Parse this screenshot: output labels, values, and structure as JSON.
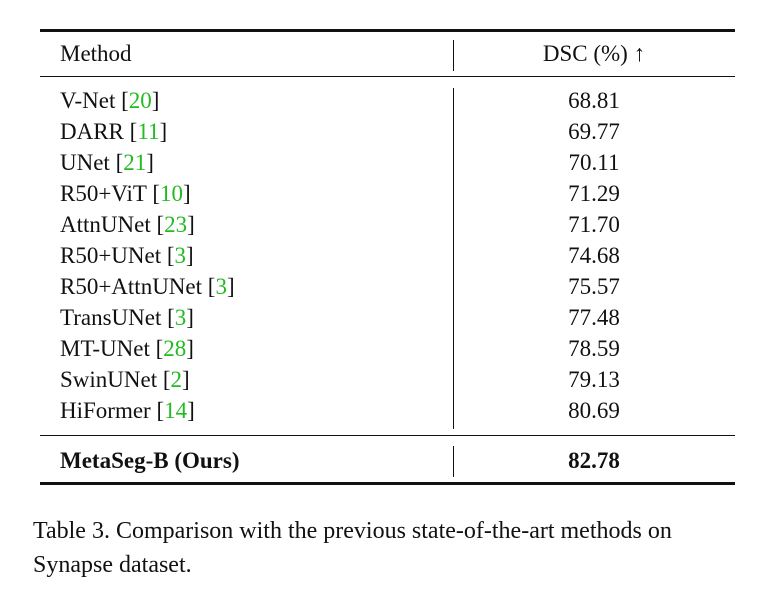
{
  "table": {
    "header": [
      "Method",
      "DSC (%) ↑"
    ],
    "rows": [
      [
        "V-Net [20]",
        "68.81"
      ],
      [
        "DARR [11]",
        "69.77"
      ],
      [
        "UNet [21]",
        "70.11"
      ],
      [
        "R50+ViT [10]",
        "71.29"
      ],
      [
        "AttnUNet [23]",
        "71.70"
      ],
      [
        "R50+UNet [3]",
        "74.68"
      ],
      [
        "R50+AttnUNet [3]",
        "75.57"
      ],
      [
        "TransUNet [3]",
        "77.48"
      ],
      [
        "MT-UNet [28]",
        "78.59"
      ],
      [
        "SwinUNet [2]",
        "79.13"
      ],
      [
        "HiFormer [14]",
        "80.69"
      ]
    ],
    "ours": [
      "MetaSeg-B (Ours)",
      "82.78"
    ]
  },
  "caption": "Table 3. Comparison with the previous state-of-the-art methods on Synapse dataset."
}
